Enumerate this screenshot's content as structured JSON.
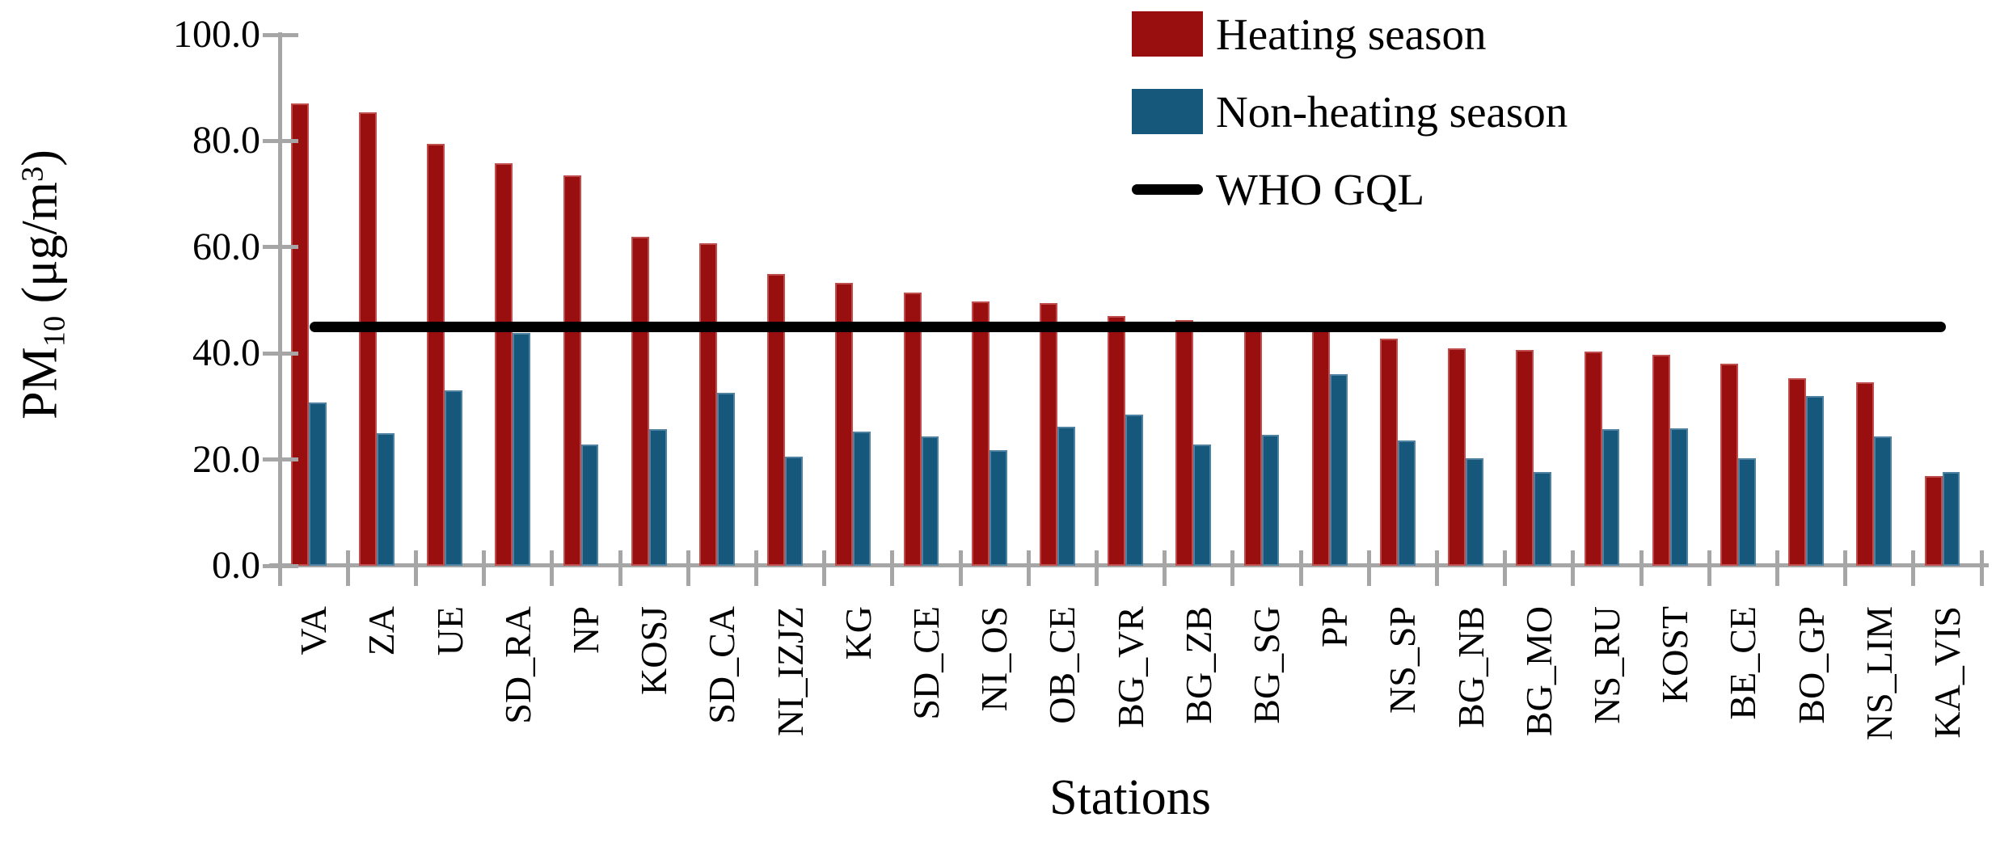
{
  "figure": {
    "y_title_parts": {
      "p1": "PM",
      "sub": "10",
      "p2": " (μg/m",
      "sup": "3",
      "p3": ")"
    },
    "x_title": "Stations"
  },
  "axes": {
    "y_tick_labels": [
      "100.0",
      "80.0",
      "60.0",
      "40.0",
      "20.0",
      "0.0"
    ],
    "y_tick_values": [
      100,
      80,
      60,
      40,
      20,
      0
    ],
    "axis_color": "#a6a6a6"
  },
  "legend": {
    "items": [
      {
        "label": "Heating season",
        "swatch": "box",
        "color": "#990e0f"
      },
      {
        "label": "Non-heating season",
        "swatch": "box",
        "color": "#15587c"
      },
      {
        "label": "WHO GQL",
        "swatch": "line",
        "color": "#000000"
      }
    ]
  },
  "chart_data": {
    "type": "bar",
    "title": "",
    "xlabel": "Stations",
    "ylabel": "PM10 (μg/m3)",
    "ylim": [
      0,
      100
    ],
    "y_tick_step": 20,
    "grid": false,
    "legend_position": "top-right",
    "categories": [
      "VA",
      "ZA",
      "UE",
      "SD_RA",
      "NP",
      "KOSJ",
      "SD_CA",
      "NI_IZJZ",
      "KG",
      "SD_CE",
      "NI_OS",
      "OB_CE",
      "BG_VR",
      "BG_ZB",
      "BG_SG",
      "PP",
      "NS_SP",
      "BG_NB",
      "BG_MO",
      "NS_RU",
      "KOST",
      "BE_CE",
      "BO_GP",
      "NS_LIM",
      "KA_VIS"
    ],
    "series": [
      {
        "name": "Heating season",
        "color": "#990e0f",
        "border_color": "#be4d4b",
        "values": [
          87.0,
          85.4,
          79.5,
          75.8,
          73.5,
          62.0,
          60.8,
          55.0,
          53.2,
          51.4,
          49.8,
          49.4,
          47.0,
          46.2,
          45.3,
          44.6,
          42.8,
          41.0,
          40.7,
          40.4,
          39.8,
          38.0,
          35.3,
          34.6,
          16.9
        ]
      },
      {
        "name": "Non-heating season",
        "color": "#15587c",
        "border_color": "#4f81a1",
        "values": [
          30.8,
          24.9,
          33.0,
          43.8,
          22.8,
          25.8,
          32.6,
          20.5,
          25.2,
          24.4,
          21.8,
          26.2,
          28.4,
          22.8,
          24.6,
          36.0,
          23.6,
          20.2,
          17.7,
          25.8,
          25.9,
          20.3,
          31.9,
          24.4,
          17.7
        ]
      }
    ],
    "reference_line": {
      "name": "WHO GQL",
      "value": 45,
      "color": "#000000"
    }
  }
}
